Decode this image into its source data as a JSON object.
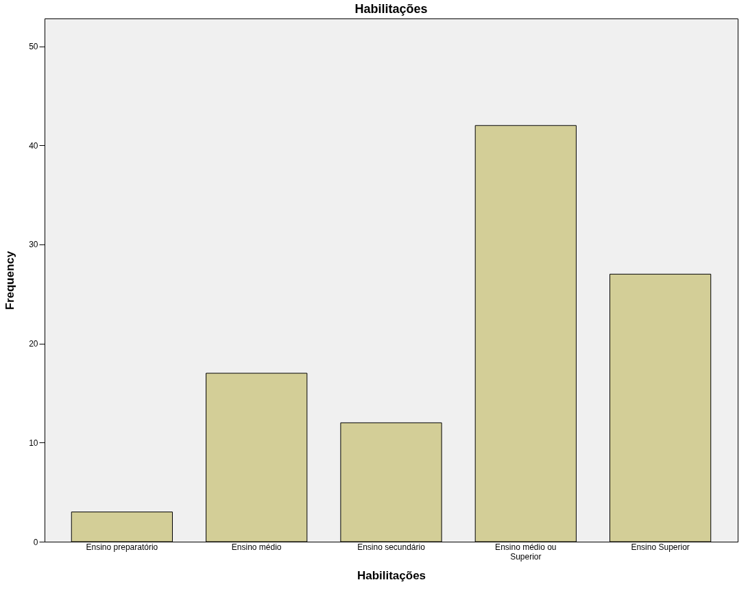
{
  "chart_data": {
    "type": "bar",
    "title": "Habilitações",
    "xlabel": "Habilitações",
    "ylabel": "Frequency",
    "categories": [
      "Ensino preparatório",
      "Ensino médio",
      "Ensino secundário",
      "Ensino médio ou Superior",
      "Ensino Superior"
    ],
    "values": [
      3,
      17,
      12,
      42,
      27
    ],
    "color": "#d3ce97",
    "ylim": [
      0,
      52.8
    ],
    "yticks": [
      0,
      10,
      20,
      30,
      40,
      50
    ],
    "grid": false
  }
}
